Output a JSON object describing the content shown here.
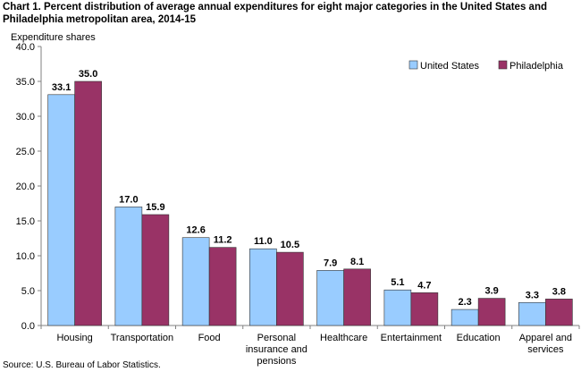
{
  "title_line1": "Chart 1. Percent distribution of average annual expenditures for eight major categories in the United States and",
  "title_line2": "Philadelphia metropolitan area, 2014-15",
  "source": "Source: U.S. Bureau of Labor Statistics.",
  "chart_data": {
    "type": "bar",
    "title": "Percent distribution of average annual expenditures for eight major categories in the United States and Philadelphia metropolitan area, 2014-15",
    "ylabel": "Expenditure shares",
    "xlabel": "",
    "ylim": [
      0,
      40
    ],
    "yticks": [
      "0.0",
      "5.0",
      "10.0",
      "15.0",
      "20.0",
      "25.0",
      "30.0",
      "35.0",
      "40.0"
    ],
    "categories": [
      [
        "Housing"
      ],
      [
        "Transportation"
      ],
      [
        "Food"
      ],
      [
        "Personal",
        "insurance and",
        "pensions"
      ],
      [
        "Healthcare"
      ],
      [
        "Entertainment"
      ],
      [
        "Education"
      ],
      [
        "Apparel and",
        "services"
      ]
    ],
    "series": [
      {
        "name": "United States",
        "color": "#99ccff",
        "values": [
          33.1,
          17.0,
          12.6,
          11.0,
          7.9,
          5.1,
          2.3,
          3.3
        ]
      },
      {
        "name": "Philadelphia",
        "color": "#993366",
        "values": [
          35.0,
          15.9,
          11.2,
          10.5,
          8.1,
          4.7,
          3.9,
          3.8
        ]
      }
    ],
    "legend_position": "top-right",
    "grid": false
  }
}
